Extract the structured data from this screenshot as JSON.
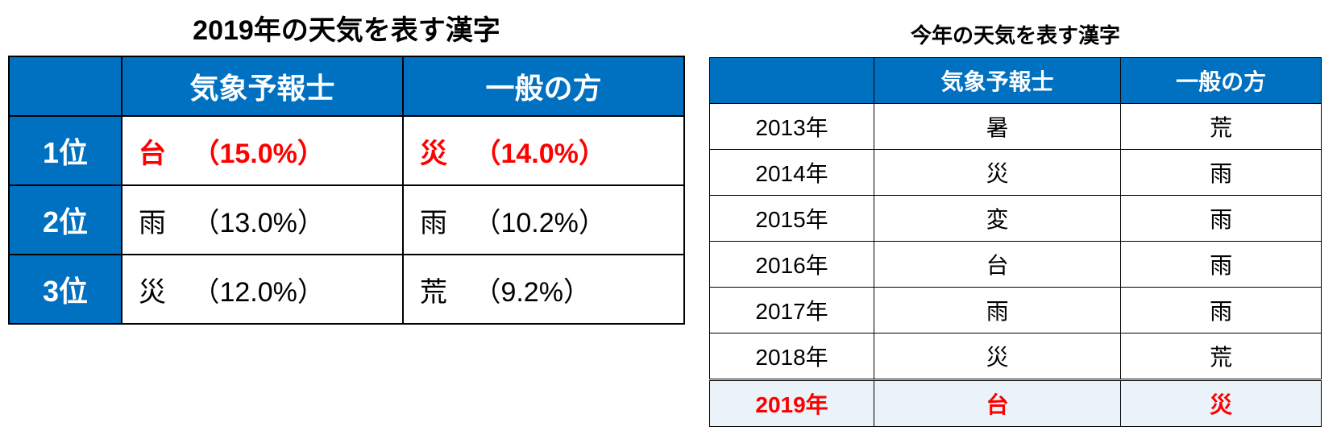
{
  "left": {
    "title": "2019年の天気を表す漢字",
    "columns": {
      "blank": "",
      "c1": "気象予報士",
      "c2": "一般の方"
    },
    "rows": [
      {
        "rank": "1位",
        "k1": "台",
        "p1": "（15.0%）",
        "k2": "災",
        "p2": "（14.0%）",
        "highlight": true
      },
      {
        "rank": "2位",
        "k1": "雨",
        "p1": "（13.0%）",
        "k2": "雨",
        "p2": "（10.2%）",
        "highlight": false
      },
      {
        "rank": "3位",
        "k1": "災",
        "p1": "（12.0%）",
        "k2": "荒",
        "p2": "（9.2%）",
        "highlight": false
      }
    ],
    "colors": {
      "header_bg": "#0070c0",
      "header_fg": "#ffffff",
      "highlight_fg": "#ff0000",
      "border": "#000000"
    },
    "font": {
      "title_pt": 34,
      "header_pt": 36,
      "cell_pt": 34,
      "weight_header": 900
    }
  },
  "right": {
    "title": "今年の天気を表す漢字",
    "columns": {
      "blank": "",
      "c1": "気象予報士",
      "c2": "一般の方"
    },
    "rows": [
      {
        "year": "2013年",
        "k1": "暑",
        "k2": "荒",
        "highlight": false
      },
      {
        "year": "2014年",
        "k1": "災",
        "k2": "雨",
        "highlight": false
      },
      {
        "year": "2015年",
        "k1": "変",
        "k2": "雨",
        "highlight": false
      },
      {
        "year": "2016年",
        "k1": "台",
        "k2": "雨",
        "highlight": false
      },
      {
        "year": "2017年",
        "k1": "雨",
        "k2": "雨",
        "highlight": false
      },
      {
        "year": "2018年",
        "k1": "災",
        "k2": "荒",
        "highlight": false
      },
      {
        "year": "2019年",
        "k1": "台",
        "k2": "災",
        "highlight": true
      }
    ],
    "colors": {
      "header_bg": "#0070c0",
      "header_fg": "#ffffff",
      "highlight_bg": "#eaf2fa",
      "highlight_fg": "#ff0000",
      "border": "#000000"
    },
    "font": {
      "title_pt": 26,
      "cell_pt": 28,
      "weight_header": 700,
      "weight_highlight": 900
    }
  }
}
